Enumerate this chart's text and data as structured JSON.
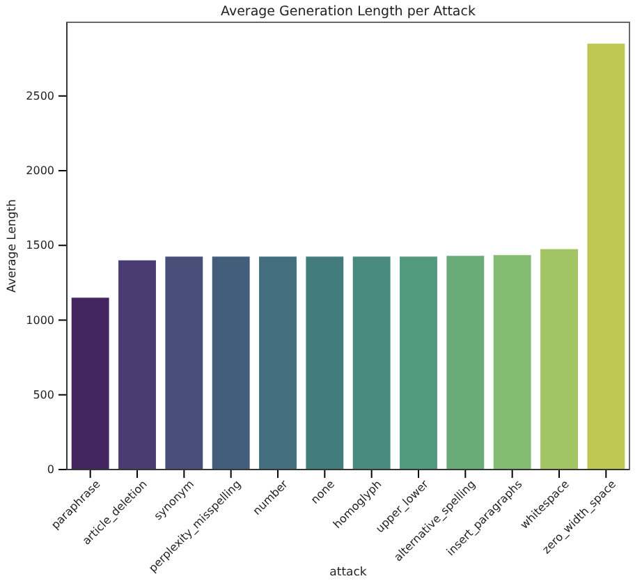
{
  "chart_data": {
    "type": "bar",
    "title": "Average Generation Length per Attack",
    "xlabel": "attack",
    "ylabel": "Average Length",
    "categories": [
      "paraphrase",
      "article_deletion",
      "synonym",
      "perplexity_misspelling",
      "number",
      "none",
      "homoglyph",
      "upper_lower",
      "alternative_spelling",
      "insert_paragraphs",
      "whitespace",
      "zero_width_space"
    ],
    "values": [
      1150,
      1400,
      1425,
      1425,
      1425,
      1425,
      1425,
      1425,
      1430,
      1435,
      1475,
      2850
    ],
    "colors": [
      "#432660",
      "#4a3b72",
      "#485079",
      "#435e7b",
      "#436e7e",
      "#437c7d",
      "#488a7e",
      "#529a7d",
      "#69ac7a",
      "#84bb72",
      "#a2c464",
      "#bfc753"
    ],
    "ylim": [
      0,
      2993
    ],
    "yticks": [
      0,
      500,
      1000,
      1500,
      2000,
      2500
    ]
  }
}
